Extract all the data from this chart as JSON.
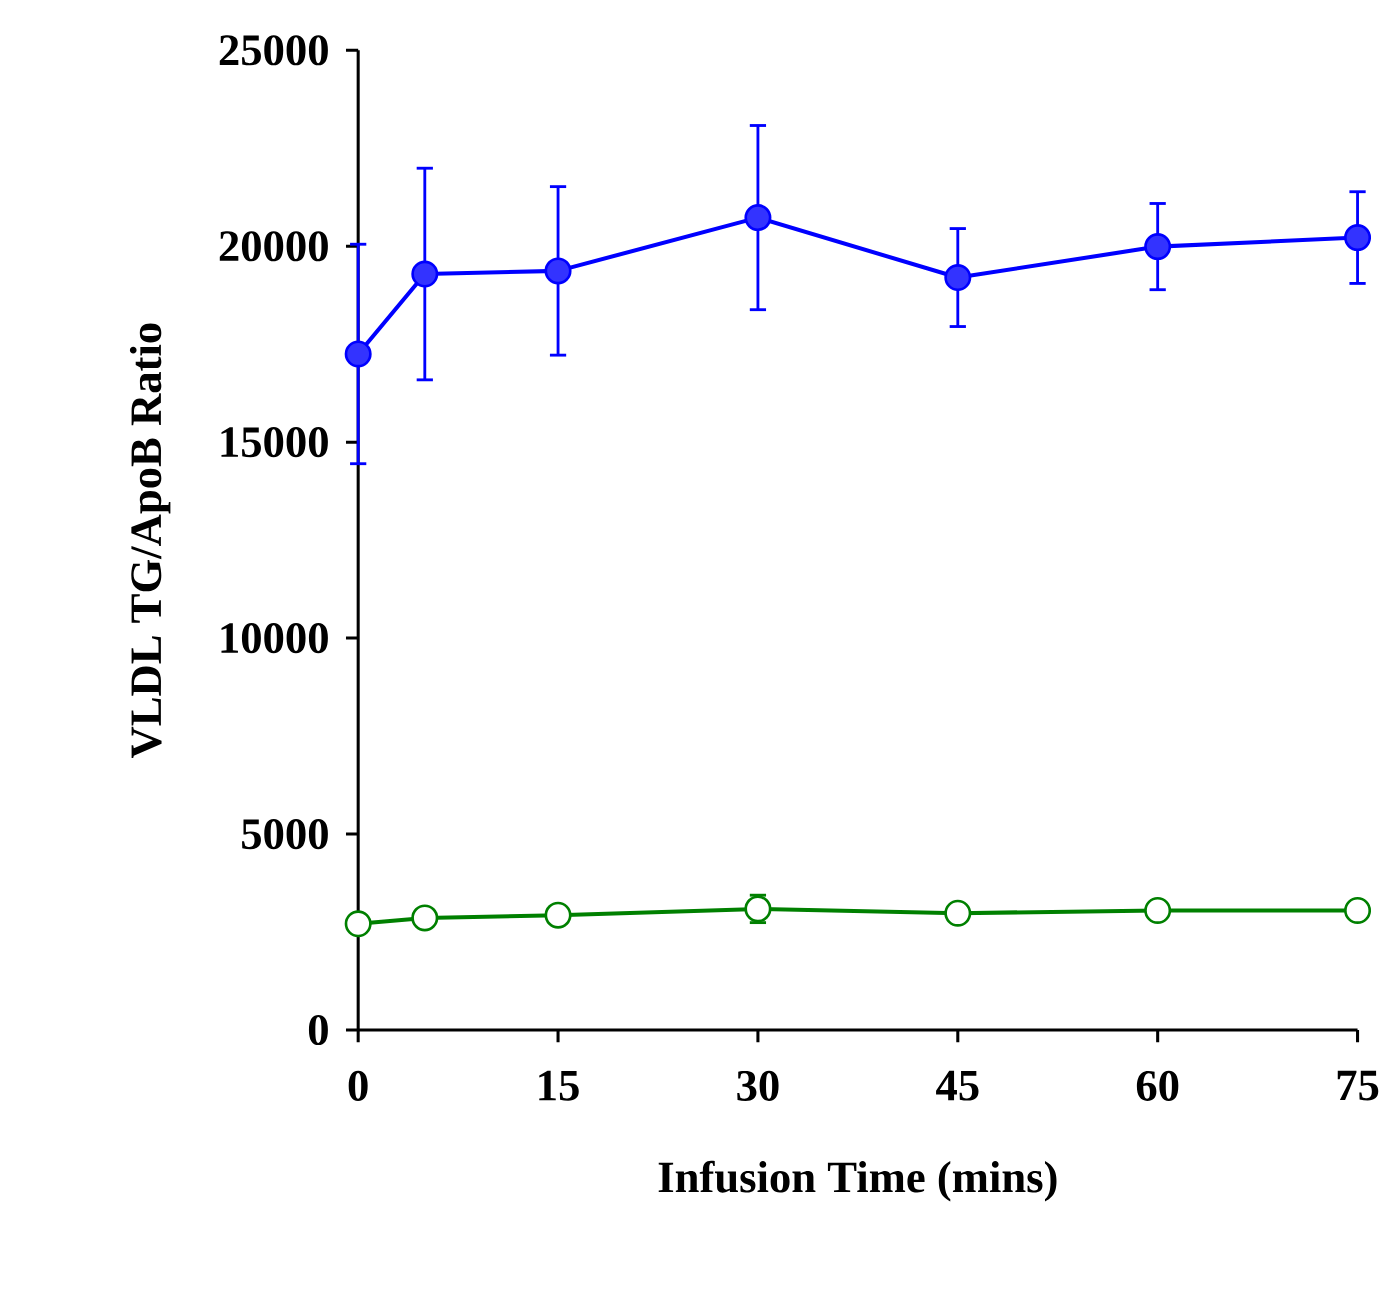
{
  "chart_data": {
    "type": "line",
    "xlabel": "Infusion Time (mins)",
    "ylabel": "VLDL TG/ApoB Ratio",
    "x": [
      0,
      5,
      15,
      30,
      45,
      60,
      75
    ],
    "series": [
      {
        "color": "#0000ff",
        "values": [
          17250,
          19290,
          19370,
          20730,
          19200,
          19990,
          20220
        ],
        "errors": [
          2800,
          2700,
          2150,
          2350,
          1250,
          1100,
          1170
        ]
      },
      {
        "color": "#008000",
        "values": [
          2710,
          2860,
          2930,
          3090,
          2980,
          3050,
          3050
        ],
        "errors": [
          null,
          null,
          null,
          350,
          null,
          null,
          null
        ]
      }
    ],
    "xlim": [
      0,
      75
    ],
    "xticks": [
      0,
      15,
      30,
      45,
      60,
      75
    ],
    "ylim": [
      0,
      25000
    ],
    "yticks": [
      0,
      5000,
      10000,
      15000,
      20000,
      25000
    ],
    "marker": "circle",
    "line_style": "solid"
  }
}
